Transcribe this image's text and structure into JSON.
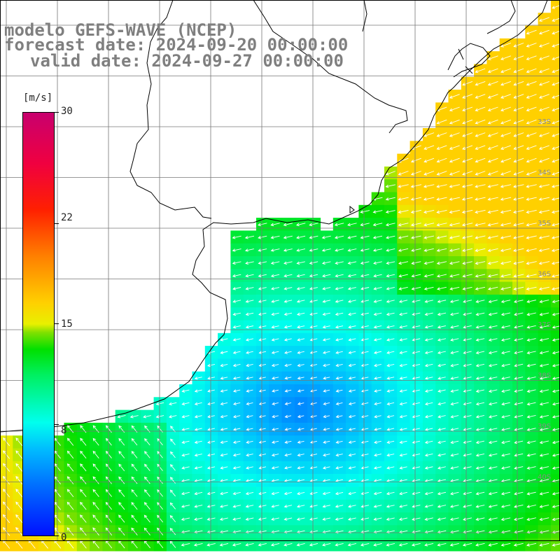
{
  "title": {
    "line1": "modelo GEFS-WAVE (NCEP)",
    "line2": "forecast date: 2024-09-20 00:00:00",
    "line3": "valid date: 2024-09-27 00:00:00"
  },
  "colorbar": {
    "unit": "[m/s]",
    "min": 0,
    "max": 30,
    "tick_labels": [
      "30",
      "22",
      "15",
      "8",
      "0"
    ],
    "tick_values": [
      30,
      22,
      15,
      8,
      0
    ]
  },
  "latitude_labels": [
    "33S",
    "34S",
    "35S",
    "36S",
    "37S",
    "38S",
    "39S",
    "40S"
  ],
  "colors": {
    "land": "#ffffff",
    "coast": "#000000",
    "grid": "#777777",
    "arrow": "#ffffff",
    "label": "#7f7f7f"
  }
}
